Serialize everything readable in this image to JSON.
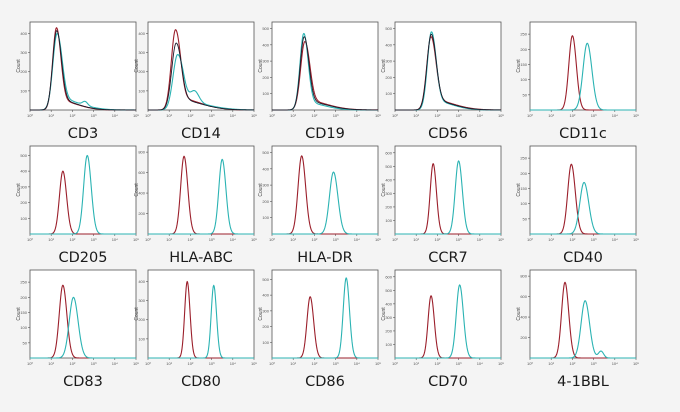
{
  "colors": {
    "red": "#9b1f2b",
    "teal": "#2bb3b3",
    "black": "#1b1b2a",
    "frame": "#555555",
    "background": "#f4f4f4"
  },
  "y_axis_label": "Count",
  "x_tick_labels": [
    "10⁰",
    "10¹",
    "10²",
    "10³",
    "10⁴",
    "10⁵"
  ],
  "chart_data": [
    {
      "type": "line",
      "title": "CD3",
      "ylabel": "Count",
      "xscale": "log",
      "xlim": [
        0,
        5
      ],
      "yticks": [
        100,
        200,
        300,
        400
      ],
      "ylim": [
        0,
        460
      ],
      "series": [
        {
          "color": "red",
          "peak": 1.25,
          "width": 0.18,
          "height": 430,
          "tail_right": 0.9,
          "tail_height": 0.12
        },
        {
          "color": "teal",
          "peak": 1.28,
          "width": 0.2,
          "height": 400,
          "tail_right": 1.0,
          "tail_height": 0.15,
          "bump": {
            "x": 2.6,
            "h": 0.05,
            "w": 0.12
          }
        },
        {
          "color": "black",
          "peak": 1.26,
          "width": 0.19,
          "height": 415,
          "tail_right": 0.9,
          "tail_height": 0.13
        }
      ]
    },
    {
      "type": "line",
      "title": "CD14",
      "ylabel": "Count",
      "xscale": "log",
      "xlim": [
        0,
        5
      ],
      "yticks": [
        100,
        200,
        300,
        400
      ],
      "ylim": [
        0,
        460
      ],
      "series": [
        {
          "color": "red",
          "peak": 1.3,
          "width": 0.2,
          "height": 420,
          "tail_right": 1.1,
          "tail_height": 0.15
        },
        {
          "color": "teal",
          "peak": 1.4,
          "width": 0.22,
          "height": 290,
          "tail_right": 1.2,
          "tail_height": 0.18,
          "bump": {
            "x": 2.2,
            "h": 0.2,
            "w": 0.2
          }
        },
        {
          "color": "black",
          "peak": 1.33,
          "width": 0.21,
          "height": 350,
          "tail_right": 1.1,
          "tail_height": 0.16
        }
      ]
    },
    {
      "type": "line",
      "title": "CD19",
      "ylabel": "Count",
      "xscale": "log",
      "xlim": [
        0,
        5
      ],
      "yticks": [
        100,
        200,
        300,
        400,
        500
      ],
      "ylim": [
        0,
        540
      ],
      "series": [
        {
          "color": "red",
          "peak": 1.55,
          "width": 0.2,
          "height": 420,
          "tail_right": 1.0,
          "tail_height": 0.14
        },
        {
          "color": "teal",
          "peak": 1.5,
          "width": 0.18,
          "height": 470,
          "tail_right": 0.9,
          "tail_height": 0.1
        },
        {
          "color": "black",
          "peak": 1.52,
          "width": 0.19,
          "height": 450,
          "tail_right": 1.0,
          "tail_height": 0.12
        }
      ]
    },
    {
      "type": "line",
      "title": "CD56",
      "ylabel": "Count",
      "xscale": "log",
      "xlim": [
        0,
        5
      ],
      "yticks": [
        100,
        200,
        300,
        400,
        500
      ],
      "ylim": [
        0,
        540
      ],
      "series": [
        {
          "color": "red",
          "peak": 1.7,
          "width": 0.2,
          "height": 450,
          "tail_right": 1.0,
          "tail_height": 0.14
        },
        {
          "color": "teal",
          "peak": 1.72,
          "width": 0.19,
          "height": 480,
          "tail_right": 0.9,
          "tail_height": 0.12
        },
        {
          "color": "black",
          "peak": 1.71,
          "width": 0.2,
          "height": 465,
          "tail_right": 0.95,
          "tail_height": 0.13
        }
      ]
    },
    {
      "type": "line",
      "title": "CD11c",
      "ylabel": "Count",
      "xscale": "log",
      "xlim": [
        0,
        5
      ],
      "yticks": [
        50,
        100,
        150,
        200,
        250
      ],
      "ylim": [
        0,
        290
      ],
      "series": [
        {
          "color": "red",
          "peak": 2.0,
          "width": 0.17,
          "height": 245
        },
        {
          "color": "teal",
          "peak": 2.7,
          "width": 0.2,
          "height": 220
        }
      ]
    },
    {
      "type": "line",
      "title": "CD205",
      "ylabel": "Count",
      "xscale": "log",
      "xlim": [
        0,
        5
      ],
      "yticks": [
        100,
        200,
        300,
        400,
        500
      ],
      "ylim": [
        0,
        560
      ],
      "series": [
        {
          "color": "red",
          "peak": 1.55,
          "width": 0.16,
          "height": 400
        },
        {
          "color": "teal",
          "peak": 2.7,
          "width": 0.17,
          "height": 500
        }
      ]
    },
    {
      "type": "line",
      "title": "HLA-ABC",
      "ylabel": "Count",
      "xscale": "log",
      "xlim": [
        0,
        5
      ],
      "yticks": [
        200,
        400,
        600,
        800
      ],
      "ylim": [
        0,
        860
      ],
      "series": [
        {
          "color": "red",
          "peak": 1.7,
          "width": 0.16,
          "height": 760
        },
        {
          "color": "teal",
          "peak": 3.5,
          "width": 0.16,
          "height": 730
        }
      ]
    },
    {
      "type": "line",
      "title": "HLA-DR",
      "ylabel": "Count",
      "xscale": "log",
      "xlim": [
        0,
        5
      ],
      "yticks": [
        100,
        200,
        300,
        400,
        500
      ],
      "ylim": [
        0,
        540
      ],
      "series": [
        {
          "color": "red",
          "peak": 1.4,
          "width": 0.17,
          "height": 480
        },
        {
          "color": "teal",
          "peak": 2.9,
          "width": 0.19,
          "height": 380
        }
      ]
    },
    {
      "type": "line",
      "title": "CCR7",
      "ylabel": "Count",
      "xscale": "log",
      "xlim": [
        0,
        5
      ],
      "yticks": [
        100,
        200,
        300,
        400,
        500,
        600
      ],
      "ylim": [
        0,
        650
      ],
      "series": [
        {
          "color": "red",
          "peak": 1.8,
          "width": 0.14,
          "height": 520
        },
        {
          "color": "teal",
          "peak": 3.0,
          "width": 0.16,
          "height": 540
        }
      ]
    },
    {
      "type": "line",
      "title": "CD40",
      "ylabel": "Count",
      "xscale": "log",
      "xlim": [
        0,
        5
      ],
      "yticks": [
        50,
        100,
        150,
        200,
        250
      ],
      "ylim": [
        0,
        290
      ],
      "series": [
        {
          "color": "red",
          "peak": 1.95,
          "width": 0.17,
          "height": 230
        },
        {
          "color": "teal",
          "peak": 2.55,
          "width": 0.2,
          "height": 170
        }
      ]
    },
    {
      "type": "line",
      "title": "CD83",
      "ylabel": "Count",
      "xscale": "log",
      "xlim": [
        0,
        5
      ],
      "yticks": [
        50,
        100,
        150,
        200,
        250
      ],
      "ylim": [
        0,
        290
      ],
      "series": [
        {
          "color": "red",
          "peak": 1.55,
          "width": 0.17,
          "height": 240
        },
        {
          "color": "teal",
          "peak": 2.05,
          "width": 0.2,
          "height": 200
        }
      ]
    },
    {
      "type": "line",
      "title": "CD80",
      "ylabel": "Count",
      "xscale": "log",
      "xlim": [
        0,
        5
      ],
      "yticks": [
        100,
        200,
        300,
        400
      ],
      "ylim": [
        0,
        460
      ],
      "series": [
        {
          "color": "red",
          "peak": 1.85,
          "width": 0.12,
          "height": 400
        },
        {
          "color": "teal",
          "peak": 3.1,
          "width": 0.12,
          "height": 380
        }
      ]
    },
    {
      "type": "line",
      "title": "CD86",
      "ylabel": "Count",
      "xscale": "log",
      "xlim": [
        0,
        5
      ],
      "yticks": [
        100,
        200,
        300,
        400,
        500
      ],
      "ylim": [
        0,
        560
      ],
      "series": [
        {
          "color": "red",
          "peak": 1.8,
          "width": 0.15,
          "height": 390
        },
        {
          "color": "teal",
          "peak": 3.5,
          "width": 0.14,
          "height": 510
        }
      ]
    },
    {
      "type": "line",
      "title": "CD70",
      "ylabel": "Count",
      "xscale": "log",
      "xlim": [
        0,
        5
      ],
      "yticks": [
        100,
        200,
        300,
        400,
        500,
        600
      ],
      "ylim": [
        0,
        650
      ],
      "series": [
        {
          "color": "red",
          "peak": 1.7,
          "width": 0.14,
          "height": 460
        },
        {
          "color": "teal",
          "peak": 3.05,
          "width": 0.16,
          "height": 540
        }
      ]
    },
    {
      "type": "line",
      "title": "4-1BBL",
      "ylabel": "Count",
      "xscale": "log",
      "xlim": [
        0,
        5
      ],
      "yticks": [
        200,
        400,
        600,
        800
      ],
      "ylim": [
        0,
        860
      ],
      "series": [
        {
          "color": "red",
          "peak": 1.65,
          "width": 0.16,
          "height": 740
        },
        {
          "color": "teal",
          "peak": 2.6,
          "width": 0.19,
          "height": 560,
          "bump": {
            "x": 3.35,
            "h": 0.12,
            "w": 0.12
          }
        }
      ]
    }
  ]
}
